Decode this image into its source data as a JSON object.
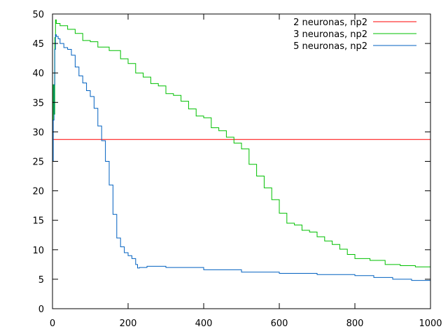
{
  "chart_data": {
    "type": "line",
    "title": "",
    "xlabel": "",
    "ylabel": "",
    "xlim": [
      0,
      1000
    ],
    "ylim": [
      0,
      50
    ],
    "xticks": [
      0,
      200,
      400,
      600,
      800,
      1000
    ],
    "yticks": [
      0,
      5,
      10,
      15,
      20,
      25,
      30,
      35,
      40,
      45,
      50
    ],
    "grid": false,
    "legend_position": "top-right",
    "series": [
      {
        "name": "2 neuronas, np2",
        "color": "#ff0000",
        "x": [
          0,
          1000
        ],
        "y": [
          28.7,
          28.7
        ]
      },
      {
        "name": "3 neuronas, np2",
        "color": "#00c000",
        "x": [
          0,
          2,
          4,
          6,
          8,
          10,
          20,
          40,
          60,
          80,
          100,
          120,
          150,
          180,
          200,
          220,
          240,
          260,
          280,
          300,
          320,
          340,
          360,
          380,
          400,
          420,
          440,
          460,
          480,
          500,
          520,
          540,
          560,
          580,
          600,
          620,
          640,
          660,
          680,
          700,
          720,
          740,
          760,
          780,
          800,
          840,
          880,
          920,
          960,
          1000
        ],
        "y": [
          32,
          38,
          33,
          46,
          49,
          48.4,
          48,
          47.4,
          46.7,
          45.5,
          45.3,
          44.4,
          43.8,
          42.4,
          41.6,
          40,
          39.3,
          38.2,
          37.8,
          36.5,
          36.2,
          35.2,
          33.9,
          32.7,
          32.4,
          30.7,
          30.2,
          29.1,
          28.1,
          27.1,
          24.5,
          22.5,
          20.5,
          18.5,
          16.2,
          14.5,
          14.2,
          13.3,
          13.0,
          12.2,
          11.5,
          10.9,
          10.1,
          9.2,
          8.5,
          8.2,
          7.5,
          7.3,
          7.1,
          6.9
        ]
      },
      {
        "name": "5 neuronas, np2",
        "color": "#0060c0",
        "x": [
          0,
          2,
          4,
          6,
          8,
          10,
          15,
          20,
          30,
          40,
          50,
          60,
          70,
          80,
          90,
          100,
          110,
          120,
          130,
          140,
          150,
          160,
          170,
          180,
          190,
          200,
          210,
          220,
          225,
          230,
          250,
          300,
          400,
          500,
          600,
          700,
          800,
          850,
          900,
          950,
          1000
        ],
        "y": [
          25,
          32,
          38,
          44,
          46.5,
          46.2,
          45.8,
          45.0,
          44.3,
          44.0,
          43.0,
          41.0,
          39.5,
          38.3,
          37.0,
          36.0,
          34.0,
          31.0,
          28.5,
          25.0,
          21.0,
          16.0,
          12.0,
          10.5,
          9.5,
          9.0,
          8.5,
          7.5,
          6.9,
          7.0,
          7.2,
          7.0,
          6.6,
          6.2,
          6.0,
          5.8,
          5.6,
          5.3,
          5.0,
          4.8,
          4.7
        ]
      }
    ]
  }
}
